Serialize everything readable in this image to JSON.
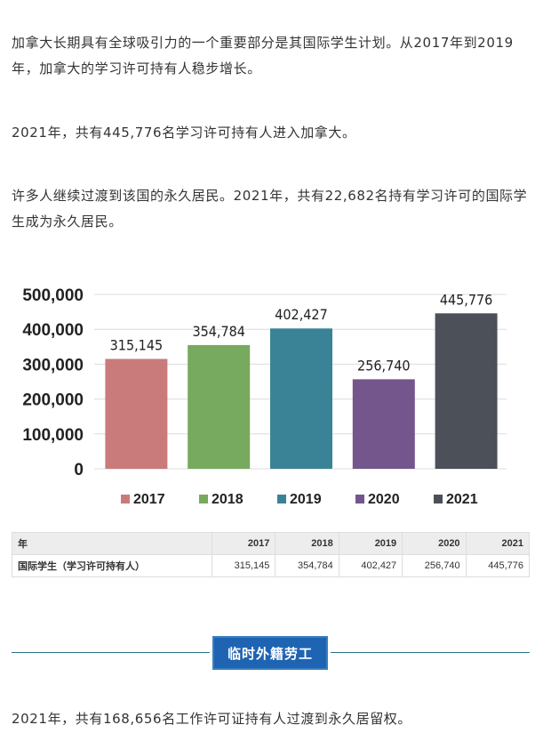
{
  "paragraphs": {
    "p1": "加拿大长期具有全球吸引力的一个重要部分是其国际学生计划。从2017年到2019年，加拿大的学习许可持有人稳步增长。",
    "p2": "2021年，共有445,776名学习许可持有人进入加拿大。",
    "p3": "许多人继续过渡到该国的永久居民。2021年，共有22,682名持有学习许可的国际学生成为永久居民。",
    "p4": "2021年，共有168,656名工作许可证持有人过渡到永久居留权。"
  },
  "chart_data": {
    "type": "bar",
    "categories": [
      "2017",
      "2018",
      "2019",
      "2020",
      "2021"
    ],
    "values": [
      315145,
      354784,
      402427,
      256740,
      445776
    ],
    "value_labels": [
      "315,145",
      "354,784",
      "402,427",
      "256,740",
      "445,776"
    ],
    "colors": [
      "#c97b7b",
      "#77a95e",
      "#3a8396",
      "#74568d",
      "#4c5058"
    ],
    "y_ticks": [
      0,
      100000,
      200000,
      300000,
      400000,
      500000
    ],
    "y_tick_labels": [
      "0",
      "100,000",
      "200,000",
      "300,000",
      "400,000",
      "500,000"
    ],
    "ylim": [
      0,
      500000
    ],
    "grid": true,
    "legend_placement": "bottom",
    "title": "",
    "xlabel": "",
    "ylabel": ""
  },
  "table": {
    "header_label": "年",
    "years": [
      "2017",
      "2018",
      "2019",
      "2020",
      "2021"
    ],
    "row_label": "国际学生（学习许可持有人）",
    "row_values": [
      "315,145",
      "354,784",
      "402,427",
      "256,740",
      "445,776"
    ]
  },
  "section": {
    "title": "临时外籍劳工",
    "accent": "#1f64b2",
    "rule_color": "#2b6e7e"
  }
}
